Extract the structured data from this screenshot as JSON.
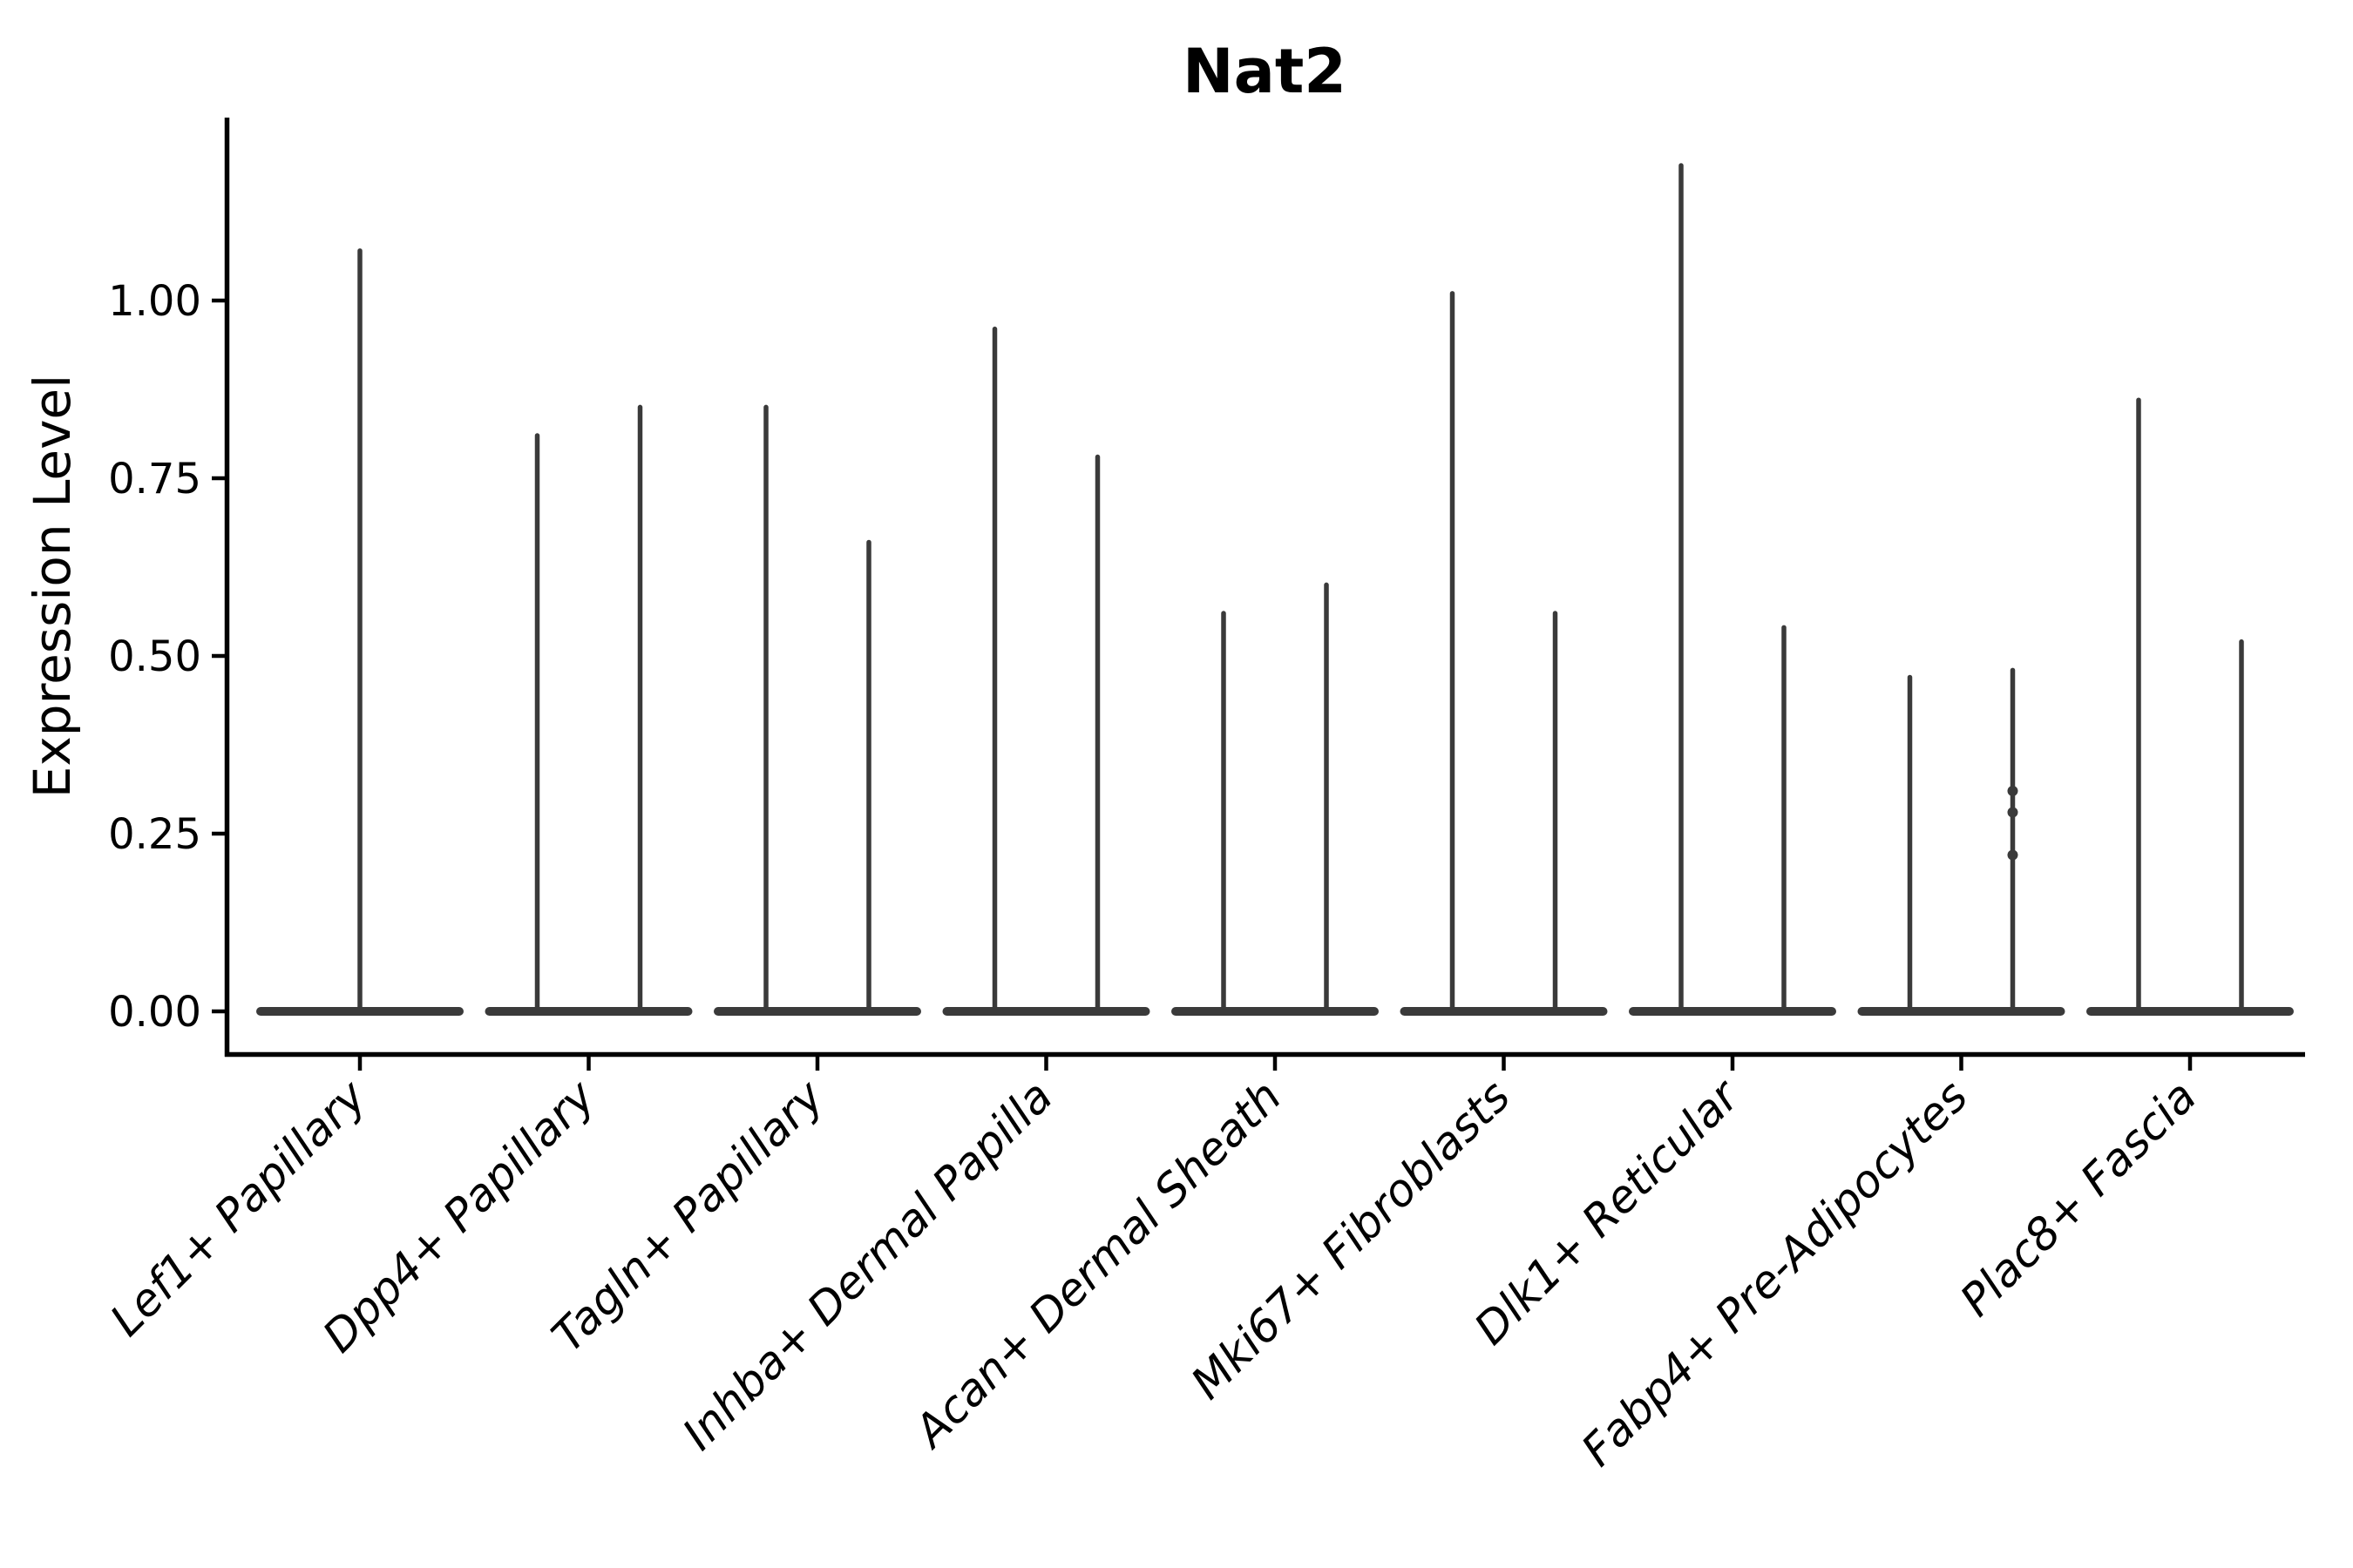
{
  "chart_data": {
    "type": "violin",
    "title": "Nat2",
    "ylabel": "Expression Level",
    "xlabel": "",
    "ylim": [
      -0.06,
      1.26
    ],
    "grid": false,
    "legend_position": "none",
    "yticks": [
      {
        "value": 0.0,
        "label": "0.00"
      },
      {
        "value": 0.25,
        "label": "0.25"
      },
      {
        "value": 0.5,
        "label": "0.50"
      },
      {
        "value": 0.75,
        "label": "0.75"
      },
      {
        "value": 1.0,
        "label": "1.00"
      }
    ],
    "categories": [
      {
        "label": "Lef1+ Papillary",
        "violins": [
          {
            "position": "center",
            "max": 1.07,
            "points": []
          }
        ]
      },
      {
        "label": "Dpp4+ Papillary",
        "violins": [
          {
            "position": "left",
            "max": 0.81,
            "points": []
          },
          {
            "position": "right",
            "max": 0.85,
            "points": []
          }
        ]
      },
      {
        "label": "Tagln+ Papillary",
        "violins": [
          {
            "position": "left",
            "max": 0.85,
            "points": []
          },
          {
            "position": "right",
            "max": 0.66,
            "points": []
          }
        ]
      },
      {
        "label": "Inhba+ Dermal Papilla",
        "violins": [
          {
            "position": "left",
            "max": 0.96,
            "points": []
          },
          {
            "position": "right",
            "max": 0.78,
            "points": []
          }
        ]
      },
      {
        "label": "Acan+ Dermal Sheath",
        "violins": [
          {
            "position": "left",
            "max": 0.56,
            "points": []
          },
          {
            "position": "right",
            "max": 0.6,
            "points": []
          }
        ]
      },
      {
        "label": "Mki67+ Fibroblasts",
        "violins": [
          {
            "position": "left",
            "max": 1.01,
            "points": []
          },
          {
            "position": "right",
            "max": 0.56,
            "points": []
          }
        ]
      },
      {
        "label": "Dlk1+ Reticular",
        "violins": [
          {
            "position": "left",
            "max": 1.19,
            "points": []
          },
          {
            "position": "right",
            "max": 0.54,
            "points": []
          }
        ]
      },
      {
        "label": "Fabp4+ Pre-Adipocytes",
        "violins": [
          {
            "position": "left",
            "max": 0.47,
            "points": []
          },
          {
            "position": "right",
            "max": 0.48,
            "points": [
              0.31,
              0.28,
              0.22
            ]
          }
        ]
      },
      {
        "label": "Plac8+ Fascia",
        "violins": [
          {
            "position": "left",
            "max": 0.86,
            "points": []
          },
          {
            "position": "right",
            "max": 0.52,
            "points": []
          }
        ]
      }
    ],
    "colors": {
      "violin": "#3a3a3a",
      "axis": "#000000",
      "text": "#000000",
      "background": "#ffffff"
    }
  }
}
